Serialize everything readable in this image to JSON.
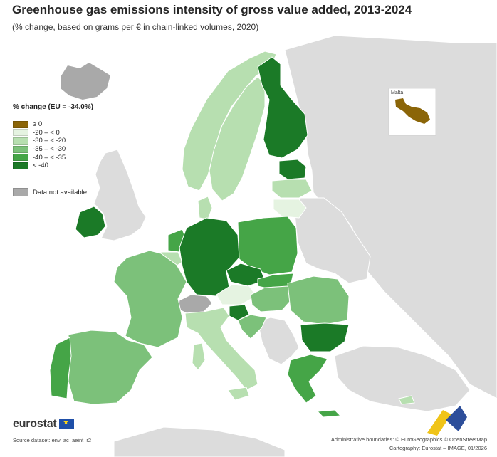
{
  "title": "Greenhouse gas emissions intensity of gross value added, 2013-2024",
  "subtitle": "(% change, based on grams per € in chain-linked volumes, 2020)",
  "legend": {
    "title": "% change (EU = -34.0%)",
    "classes": [
      {
        "label": "≥ 0",
        "color": "#8b6508"
      },
      {
        "label": "-20 – < 0",
        "color": "#e5f3e1"
      },
      {
        "label": "-30 – < -20",
        "color": "#b7dfb0"
      },
      {
        "label": "-35 – < -30",
        "color": "#7cc17a"
      },
      {
        "label": "-40 – < -35",
        "color": "#45a547"
      },
      {
        "label": "< -40",
        "color": "#1b7a27"
      }
    ],
    "not_available": {
      "label": "Data not available",
      "color": "#a9a9a9"
    }
  },
  "inset": {
    "label": "Malta"
  },
  "colors": {
    "sea": "#ffffff",
    "non_eu": "#dcdcdc",
    "border": "#ffffff"
  },
  "footer": {
    "logo_text": "eurostat",
    "source": "Source dataset: env_ac_aeint_r2",
    "admin_boundaries": "Administrative boundaries: © EuroGeographics © OpenStreetMap",
    "cartography": "Cartography: Eurostat – IMAGE, 01/2026"
  }
}
